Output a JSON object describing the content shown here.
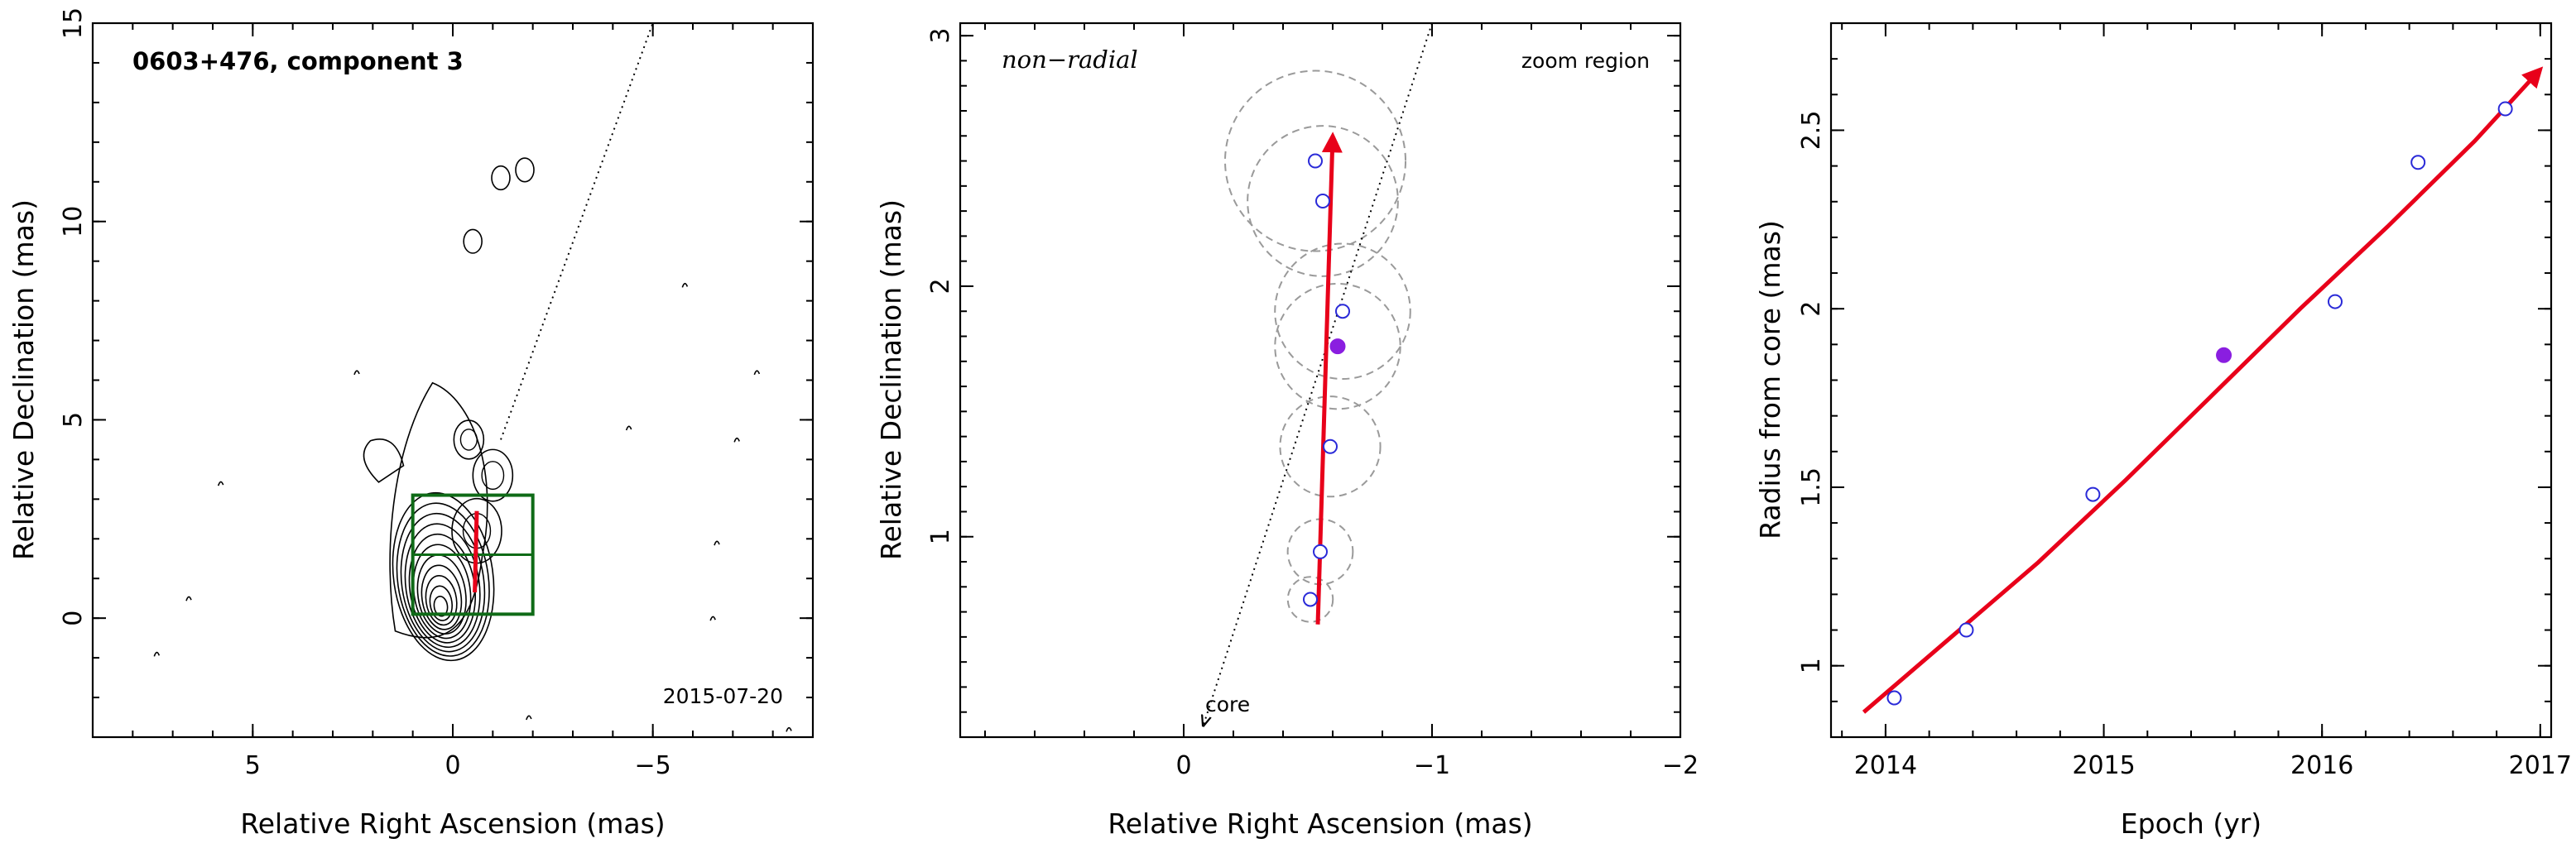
{
  "figure_title": "0603+476, component 3",
  "colors": {
    "axes": "#000000",
    "trajectory": "#e8001a",
    "points_open": "#2a2ad8",
    "point_current": "#8a1ee0",
    "box": "#0f6b17",
    "circles": "#9a9a9a",
    "contour": "#000000"
  },
  "chart_data": [
    {
      "type": "contour",
      "title": "0603+476, component 3",
      "xlabel": "Relative Right Ascension (mas)",
      "ylabel": "Relative Declination (mas)",
      "xlim": [
        9,
        -9
      ],
      "ylim": [
        -3,
        15
      ],
      "x_ticks": [
        5,
        0,
        -5
      ],
      "x_tick_labels": [
        "5",
        "0",
        "−5"
      ],
      "y_ticks": [
        0,
        5,
        10,
        15
      ],
      "y_tick_labels": [
        "0",
        "5",
        "10",
        "15"
      ],
      "date": "2015-07-20",
      "jet_direction_line": {
        "from": [
          0,
          0
        ],
        "to": [
          -5,
          15
        ]
      },
      "zoom_box": {
        "x": [
          1,
          -2
        ],
        "y": [
          0.1,
          3.1
        ]
      },
      "trajectory": {
        "from": [
          -0.55,
          0.65
        ],
        "to": [
          -0.6,
          2.7
        ]
      },
      "contour_core": [
        0.3,
        0.3
      ],
      "contour_blobs": [
        {
          "x": -0.6,
          "y": 2.2
        },
        {
          "x": -1.0,
          "y": 3.6
        },
        {
          "x": -0.4,
          "y": 4.5
        },
        {
          "x": -0.5,
          "y": 9.5
        },
        {
          "x": -1.2,
          "y": 11.1
        },
        {
          "x": -1.8,
          "y": 11.3
        }
      ]
    },
    {
      "type": "scatter",
      "title": "non−radial",
      "note": "zoom region",
      "xlabel": "Relative Right Ascension (mas)",
      "ylabel": "Relative Declination (mas)",
      "xlim": [
        0.9,
        -2.0
      ],
      "ylim": [
        0.2,
        3.05
      ],
      "x_ticks": [
        0,
        -1,
        -2
      ],
      "x_tick_labels": [
        "0",
        "−1",
        "−2"
      ],
      "y_ticks": [
        1,
        2,
        3
      ],
      "y_tick_labels": [
        "1",
        "2",
        "3"
      ],
      "core_label": "core",
      "core_arrow": {
        "from": [
          -1.0,
          3.05
        ],
        "to": [
          -0.08,
          0.25
        ]
      },
      "trajectory": {
        "from": [
          -0.54,
          0.65
        ],
        "to": [
          -0.6,
          2.6
        ]
      },
      "points": [
        {
          "x": -0.51,
          "y": 0.75,
          "r": 0.09
        },
        {
          "x": -0.55,
          "y": 0.94,
          "r": 0.13
        },
        {
          "x": -0.59,
          "y": 1.36,
          "r": 0.2
        },
        {
          "x": -0.64,
          "y": 1.9,
          "r": 0.27
        },
        {
          "x": -0.56,
          "y": 2.34,
          "r": 0.3
        },
        {
          "x": -0.53,
          "y": 2.5,
          "r": 0.36
        }
      ],
      "current_point": {
        "x": -0.62,
        "y": 1.76,
        "r": 0.25
      }
    },
    {
      "type": "scatter",
      "xlabel": "Epoch (yr)",
      "ylabel": "Radius from core (mas)",
      "xlim": [
        2013.75,
        2017.05
      ],
      "ylim": [
        0.8,
        2.8
      ],
      "x_ticks": [
        2014,
        2015,
        2016,
        2017
      ],
      "x_tick_labels": [
        "2014",
        "2015",
        "2016",
        "2017"
      ],
      "y_ticks": [
        1,
        1.5,
        2,
        2.5
      ],
      "y_tick_labels": [
        "1",
        "1.5",
        "2",
        "2.5"
      ],
      "series": [
        {
          "x": [
            2014.04,
            2014.37,
            2014.95,
            2016.06,
            2016.44,
            2016.84
          ],
          "y": [
            0.91,
            1.1,
            1.48,
            2.02,
            2.41,
            2.56
          ]
        }
      ],
      "current_point": {
        "x": 2015.55,
        "y": 1.87
      },
      "fit": {
        "x": [
          2013.9,
          2014.3,
          2014.7,
          2015.1,
          2015.5,
          2015.9,
          2016.3,
          2016.7,
          2017.0
        ],
        "y": [
          0.87,
          1.08,
          1.29,
          1.52,
          1.76,
          2.0,
          2.23,
          2.47,
          2.67
        ]
      }
    }
  ]
}
